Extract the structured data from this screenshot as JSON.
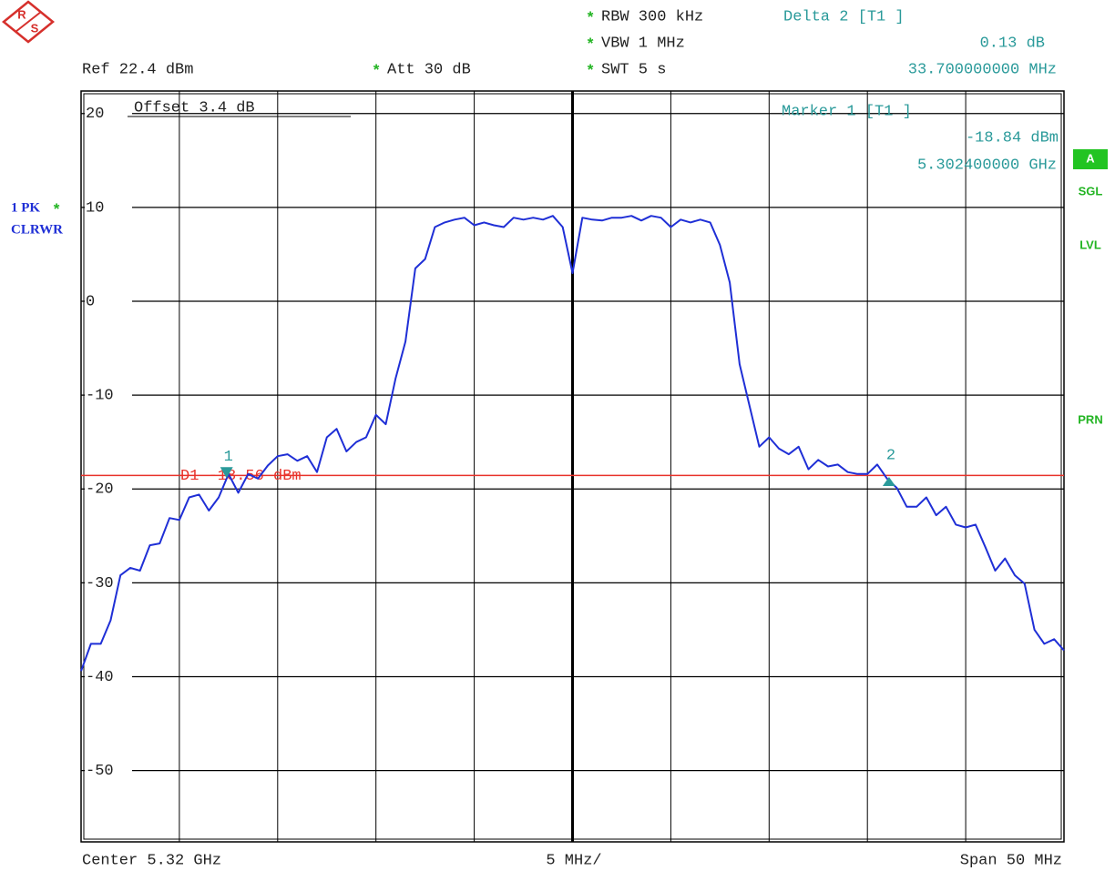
{
  "logo": {
    "r": "R",
    "s": "S"
  },
  "header": {
    "ref": "Ref 22.4 dBm",
    "att_flag": "*",
    "att": "Att 30 dB",
    "settings": [
      {
        "flag": "*",
        "text": "RBW 300 kHz"
      },
      {
        "flag": "*",
        "text": "VBW 1 MHz"
      },
      {
        "flag": "*",
        "text": "SWT 5 s"
      }
    ],
    "delta": {
      "title": "Delta 2 [T1 ]",
      "value": 0.13,
      "value_label": "0.13 dB",
      "offset": 33.7,
      "offset_label": "33.700000000 MHz"
    }
  },
  "trace_info": {
    "label": "1 PK",
    "flag": "*",
    "mode": "CLRWR"
  },
  "side_labels": [
    "A",
    "SGL",
    "LVL",
    "PRN"
  ],
  "footer": {
    "center": "Center 5.32 GHz",
    "div": "5 MHz/",
    "span": "Span 50 MHz"
  },
  "chart_data": {
    "type": "line",
    "offset_label": "Offset 3.4 dB",
    "color": "#1f2fd6",
    "grid": true,
    "xlim": [
      5.295,
      5.345
    ],
    "ylim": [
      -57.6,
      22.4
    ],
    "yticks": [
      20,
      10,
      0,
      -10,
      -20,
      -30,
      -40,
      -50
    ],
    "x": [
      5.295,
      5.2955,
      5.296,
      5.2965,
      5.297,
      5.2975,
      5.298,
      5.2985,
      5.299,
      5.2995,
      5.3,
      5.3005,
      5.301,
      5.3015,
      5.302,
      5.3025,
      5.303,
      5.3035,
      5.304,
      5.3045,
      5.305,
      5.3055,
      5.306,
      5.3065,
      5.307,
      5.3075,
      5.308,
      5.3085,
      5.309,
      5.3095,
      5.31,
      5.3105,
      5.311,
      5.3115,
      5.312,
      5.3125,
      5.313,
      5.3135,
      5.314,
      5.3145,
      5.315,
      5.3155,
      5.316,
      5.3165,
      5.317,
      5.3175,
      5.318,
      5.3185,
      5.319,
      5.3195,
      5.32,
      5.3205,
      5.321,
      5.3215,
      5.322,
      5.3225,
      5.323,
      5.3235,
      5.324,
      5.3245,
      5.325,
      5.3255,
      5.326,
      5.3265,
      5.327,
      5.3275,
      5.328,
      5.3285,
      5.329,
      5.3295,
      5.33,
      5.3305,
      5.331,
      5.3315,
      5.332,
      5.3325,
      5.333,
      5.3335,
      5.334,
      5.3345,
      5.335,
      5.3355,
      5.336,
      5.3365,
      5.337,
      5.3375,
      5.338,
      5.3385,
      5.339,
      5.3395,
      5.34,
      5.3405,
      5.341,
      5.3415,
      5.342,
      5.3425,
      5.343,
      5.3435,
      5.344,
      5.3445,
      5.345
    ],
    "values": [
      -39.4,
      -36.5,
      -36.5,
      -34,
      -29.2,
      -28.4,
      -28.7,
      -26,
      -25.8,
      -23.1,
      -23.3,
      -20.9,
      -20.6,
      -22.3,
      -20.9,
      -18.4,
      -20.4,
      -18.4,
      -18.9,
      -17.5,
      -16.5,
      -16.3,
      -17,
      -16.5,
      -18.2,
      -14.5,
      -13.6,
      -16,
      -15,
      -14.5,
      -12.1,
      -13.1,
      -8.2,
      -4.3,
      3.5,
      4.5,
      7.9,
      8.4,
      8.7,
      8.9,
      8.1,
      8.4,
      8.1,
      7.9,
      8.9,
      8.7,
      8.9,
      8.7,
      9.1,
      7.9,
      3,
      8.9,
      8.7,
      8.6,
      8.9,
      8.9,
      9.1,
      8.6,
      9.1,
      8.9,
      7.9,
      8.7,
      8.4,
      8.7,
      8.4,
      6,
      2,
      -6.7,
      -11.1,
      -15.5,
      -14.5,
      -15.7,
      -16.3,
      -15.5,
      -17.9,
      -16.9,
      -17.6,
      -17.4,
      -18.2,
      -18.4,
      -18.4,
      -17.4,
      -18.9,
      -19.9,
      -21.9,
      -21.9,
      -20.9,
      -22.8,
      -21.9,
      -23.8,
      -24.1,
      -23.8,
      -26.2,
      -28.7,
      -27.4,
      -29.2,
      -30.1,
      -35,
      -36.5,
      -36,
      -37.2
    ],
    "display_line": {
      "value": -18.56,
      "label": "D1 -18.56 dBm",
      "color": "#e8322a"
    },
    "marker_color": "#2a9a9a",
    "markers": [
      {
        "label": "1",
        "title": "Marker 1 [T1 ]",
        "x": 5.3024,
        "x_label": "5.302400000 GHz",
        "value": -18.84,
        "value_label": "-18.84 dBm"
      },
      {
        "label": "2",
        "x": 5.3361,
        "value": -18.71
      }
    ]
  }
}
